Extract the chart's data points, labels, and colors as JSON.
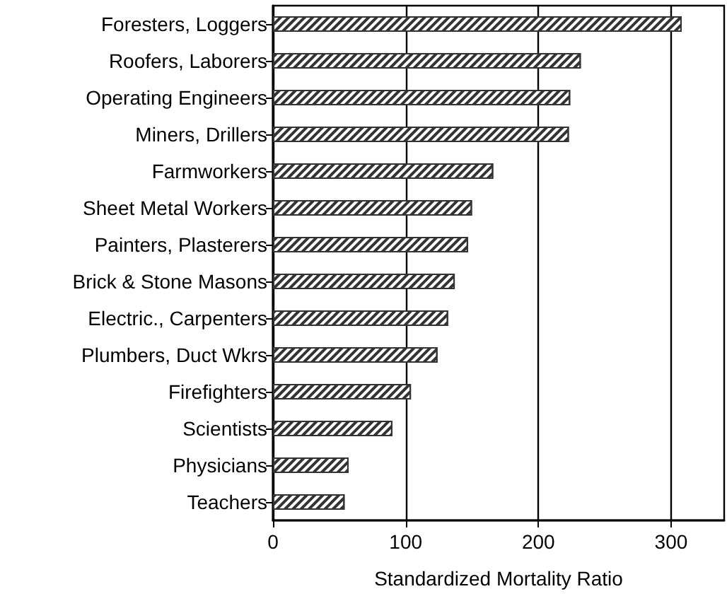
{
  "chart_data": {
    "type": "bar",
    "orientation": "horizontal",
    "xlabel": "Standardized Mortality Ratio",
    "categories": [
      "Foresters, Loggers",
      "Roofers, Laborers",
      "Operating Engineers",
      "Miners, Drillers",
      "Farmworkers",
      "Sheet Metal Workers",
      "Painters, Plasterers",
      "Brick & Stone Masons",
      "Electric., Carpenters",
      "Plumbers, Duct Wkrs",
      "Firefighters",
      "Scientists",
      "Physicians",
      "Teachers"
    ],
    "values": [
      308,
      232,
      224,
      223,
      166,
      150,
      147,
      137,
      132,
      124,
      104,
      90,
      57,
      54
    ],
    "color": "#333333",
    "xlim": [
      0,
      340
    ],
    "xticks": [
      0,
      100,
      200,
      300
    ],
    "grid": "x"
  }
}
